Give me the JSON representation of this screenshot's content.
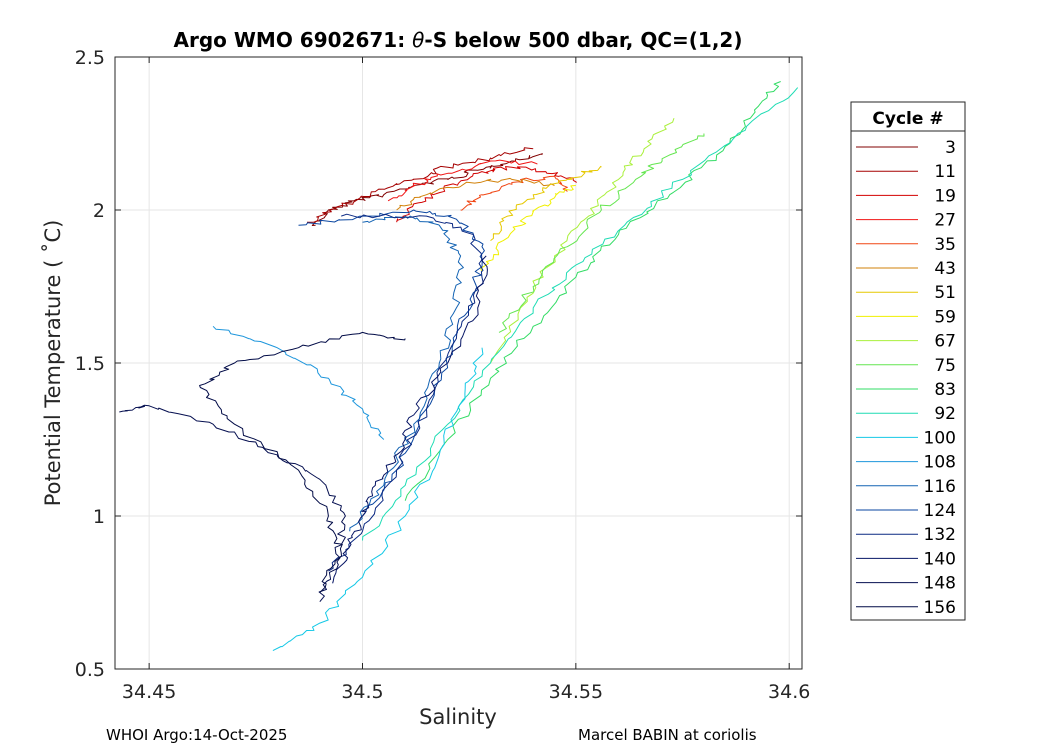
{
  "chart_data": {
    "type": "line",
    "title_prefix": "Argo WMO 6902671: ",
    "title_symbol": "θ",
    "title_suffix": "-S below 500 dbar,  QC=(1,2)",
    "xlabel": "Salinity",
    "ylabel": "Potential Temperature ( ˚C)",
    "xlim": [
      34.442,
      34.603
    ],
    "ylim": [
      0.5,
      2.5
    ],
    "xticks": [
      34.45,
      34.5,
      34.55,
      34.6
    ],
    "xtick_labels": [
      "34.45",
      "34.5",
      "34.55",
      "34.6"
    ],
    "yticks": [
      0.5,
      1,
      1.5,
      2,
      2.5
    ],
    "ytick_labels": [
      "0.5",
      "1",
      "1.5",
      "2",
      "2.5"
    ],
    "grid": true,
    "legend": {
      "title": "Cycle #",
      "position": "right-outside",
      "entries": [
        {
          "label": "3",
          "color": "#800000"
        },
        {
          "label": "11",
          "color": "#a50000"
        },
        {
          "label": "19",
          "color": "#d20000"
        },
        {
          "label": "27",
          "color": "#f01414"
        },
        {
          "label": "35",
          "color": "#f04614"
        },
        {
          "label": "43",
          "color": "#d2820a"
        },
        {
          "label": "51",
          "color": "#e6c800"
        },
        {
          "label": "59",
          "color": "#f0f000"
        },
        {
          "label": "67",
          "color": "#aaf03c"
        },
        {
          "label": "75",
          "color": "#64e650"
        },
        {
          "label": "83",
          "color": "#32dc64"
        },
        {
          "label": "92",
          "color": "#1edcb4"
        },
        {
          "label": "100",
          "color": "#14c8e6"
        },
        {
          "label": "108",
          "color": "#1e96dc"
        },
        {
          "label": "116",
          "color": "#1464b4"
        },
        {
          "label": "124",
          "color": "#0a46a0"
        },
        {
          "label": "132",
          "color": "#0a2882"
        },
        {
          "label": "140",
          "color": "#051464"
        },
        {
          "label": "148",
          "color": "#050f50"
        },
        {
          "label": "156",
          "color": "#000a46"
        }
      ]
    },
    "series": [
      {
        "name": "3",
        "color": "#800000",
        "points": [
          [
            34.489,
            1.95
          ],
          [
            34.492,
            2.0
          ],
          [
            34.498,
            2.03
          ],
          [
            34.505,
            2.05
          ],
          [
            34.512,
            2.08
          ],
          [
            34.52,
            2.1
          ],
          [
            34.527,
            2.13
          ],
          [
            34.535,
            2.16
          ],
          [
            34.542,
            2.18
          ]
        ]
      },
      {
        "name": "11",
        "color": "#a50000",
        "points": [
          [
            34.487,
            1.96
          ],
          [
            34.494,
            2.01
          ],
          [
            34.503,
            2.06
          ],
          [
            34.512,
            2.1
          ],
          [
            34.52,
            2.14
          ],
          [
            34.53,
            2.17
          ],
          [
            34.54,
            2.2
          ]
        ]
      },
      {
        "name": "19",
        "color": "#d20000",
        "points": [
          [
            34.508,
            1.96
          ],
          [
            34.512,
            2.02
          ],
          [
            34.519,
            2.07
          ],
          [
            34.527,
            2.12
          ],
          [
            34.535,
            2.14
          ],
          [
            34.545,
            2.12
          ],
          [
            34.55,
            2.09
          ]
        ]
      },
      {
        "name": "27",
        "color": "#f01414",
        "points": [
          [
            34.506,
            2.03
          ],
          [
            34.512,
            2.08
          ],
          [
            34.52,
            2.12
          ],
          [
            34.53,
            2.16
          ],
          [
            34.541,
            2.15
          ]
        ]
      },
      {
        "name": "35",
        "color": "#f04614",
        "points": [
          [
            34.523,
            2.0
          ],
          [
            34.528,
            2.05
          ],
          [
            34.535,
            2.09
          ],
          [
            34.545,
            2.11
          ],
          [
            34.548,
            2.06
          ]
        ]
      },
      {
        "name": "43",
        "color": "#d2820a",
        "points": [
          [
            34.508,
            2.0
          ],
          [
            34.515,
            2.05
          ],
          [
            34.525,
            2.09
          ],
          [
            34.535,
            2.1
          ],
          [
            34.545,
            2.08
          ]
        ]
      },
      {
        "name": "51",
        "color": "#e6c800",
        "points": [
          [
            34.53,
            1.9
          ],
          [
            34.534,
            1.98
          ],
          [
            34.54,
            2.05
          ],
          [
            34.548,
            2.1
          ],
          [
            34.556,
            2.14
          ]
        ]
      },
      {
        "name": "59",
        "color": "#f0f000",
        "points": [
          [
            34.528,
            1.8
          ],
          [
            34.533,
            1.9
          ],
          [
            34.539,
            1.98
          ],
          [
            34.545,
            2.04
          ],
          [
            34.55,
            2.08
          ]
        ]
      },
      {
        "name": "67",
        "color": "#aaf03c",
        "points": [
          [
            34.53,
            1.5
          ],
          [
            34.537,
            1.68
          ],
          [
            34.545,
            1.85
          ],
          [
            34.553,
            1.98
          ],
          [
            34.56,
            2.1
          ],
          [
            34.566,
            2.2
          ],
          [
            34.573,
            2.3
          ]
        ]
      },
      {
        "name": "75",
        "color": "#64e650",
        "points": [
          [
            34.532,
            1.6
          ],
          [
            34.54,
            1.75
          ],
          [
            34.548,
            1.88
          ],
          [
            34.556,
            2.0
          ],
          [
            34.564,
            2.1
          ],
          [
            34.572,
            2.18
          ],
          [
            34.58,
            2.25
          ]
        ]
      },
      {
        "name": "83",
        "color": "#32dc64",
        "points": [
          [
            34.51,
            1.05
          ],
          [
            34.52,
            1.25
          ],
          [
            34.53,
            1.45
          ],
          [
            34.54,
            1.62
          ],
          [
            34.55,
            1.78
          ],
          [
            34.56,
            1.92
          ],
          [
            34.572,
            2.05
          ],
          [
            34.583,
            2.18
          ],
          [
            34.592,
            2.32
          ],
          [
            34.598,
            2.42
          ]
        ]
      },
      {
        "name": "92",
        "color": "#1edcb4",
        "points": [
          [
            34.5,
            0.92
          ],
          [
            34.51,
            1.1
          ],
          [
            34.52,
            1.3
          ],
          [
            34.53,
            1.5
          ],
          [
            34.54,
            1.68
          ],
          [
            34.55,
            1.82
          ],
          [
            34.562,
            1.96
          ],
          [
            34.575,
            2.1
          ],
          [
            34.588,
            2.25
          ],
          [
            34.602,
            2.4
          ]
        ]
      },
      {
        "name": "100",
        "color": "#14c8e6",
        "points": [
          [
            34.479,
            0.56
          ],
          [
            34.49,
            0.65
          ],
          [
            34.5,
            0.8
          ],
          [
            34.51,
            1.0
          ],
          [
            34.518,
            1.2
          ],
          [
            34.524,
            1.4
          ],
          [
            34.528,
            1.55
          ]
        ]
      },
      {
        "name": "108",
        "color": "#1e96dc",
        "points": [
          [
            34.465,
            1.62
          ],
          [
            34.48,
            1.55
          ],
          [
            34.492,
            1.45
          ],
          [
            34.5,
            1.35
          ],
          [
            34.505,
            1.25
          ]
        ]
      },
      {
        "name": "116",
        "color": "#1464b4",
        "points": [
          [
            34.497,
            0.95
          ],
          [
            34.505,
            1.1
          ],
          [
            34.512,
            1.3
          ],
          [
            34.518,
            1.5
          ],
          [
            34.522,
            1.68
          ],
          [
            34.523,
            1.85
          ],
          [
            34.518,
            1.95
          ],
          [
            34.51,
            1.98
          ],
          [
            34.5,
            1.96
          ]
        ]
      },
      {
        "name": "124",
        "color": "#0a46a0",
        "points": [
          [
            34.5,
            1.0
          ],
          [
            34.508,
            1.15
          ],
          [
            34.515,
            1.35
          ],
          [
            34.521,
            1.55
          ],
          [
            34.526,
            1.73
          ],
          [
            34.528,
            1.88
          ],
          [
            34.522,
            1.97
          ],
          [
            34.512,
            2.0
          ],
          [
            34.5,
            1.98
          ],
          [
            34.485,
            1.95
          ]
        ]
      },
      {
        "name": "132",
        "color": "#0a2882",
        "points": [
          [
            34.492,
            0.82
          ],
          [
            34.5,
            0.95
          ],
          [
            34.508,
            1.15
          ],
          [
            34.515,
            1.35
          ],
          [
            34.522,
            1.58
          ],
          [
            34.528,
            1.78
          ],
          [
            34.526,
            1.92
          ],
          [
            34.515,
            1.98
          ],
          [
            34.495,
            1.98
          ]
        ]
      },
      {
        "name": "140",
        "color": "#051464",
        "points": [
          [
            34.493,
            0.78
          ],
          [
            34.497,
            0.9
          ],
          [
            34.5,
            1.0
          ],
          [
            34.503,
            1.1
          ],
          [
            34.508,
            1.2
          ],
          [
            34.512,
            1.33
          ],
          [
            34.52,
            1.5
          ],
          [
            34.527,
            1.68
          ],
          [
            34.529,
            1.85
          ]
        ]
      },
      {
        "name": "148",
        "color": "#050f50",
        "points": [
          [
            34.49,
            0.72
          ],
          [
            34.494,
            0.85
          ],
          [
            34.496,
            1.0
          ],
          [
            34.49,
            1.12
          ],
          [
            34.48,
            1.2
          ],
          [
            34.465,
            1.3
          ],
          [
            34.45,
            1.36
          ],
          [
            34.443,
            1.34
          ]
        ]
      },
      {
        "name": "156",
        "color": "#000a46",
        "points": [
          [
            34.49,
            0.75
          ],
          [
            34.495,
            0.88
          ],
          [
            34.492,
            1.0
          ],
          [
            34.485,
            1.15
          ],
          [
            34.47,
            1.3
          ],
          [
            34.462,
            1.42
          ],
          [
            34.47,
            1.5
          ],
          [
            34.485,
            1.55
          ],
          [
            34.5,
            1.6
          ],
          [
            34.51,
            1.58
          ]
        ]
      }
    ]
  },
  "footer": {
    "left": "WHOI Argo:14-Oct-2025",
    "right": "Marcel BABIN at coriolis"
  }
}
